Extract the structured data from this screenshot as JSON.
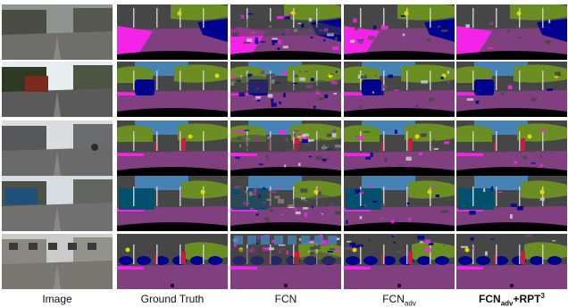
{
  "figure": {
    "captions": [
      {
        "id": "image",
        "text": "Image"
      },
      {
        "id": "gt",
        "text": "Ground Truth"
      },
      {
        "id": "fcn",
        "text": "FCN"
      },
      {
        "id": "fcn-adv",
        "base": "FCN",
        "sub": "adv"
      },
      {
        "id": "fcn-adv-rpt",
        "base": "FCN",
        "sub": "adv",
        "mid": "+RPT",
        "sup": "3"
      }
    ],
    "palette": {
      "road": "#804080",
      "sidewalk": "#f423e8",
      "building": "#464646",
      "vegetation": "#6b8e23",
      "sky": "#4682b4",
      "car": "#00008e",
      "person": "#dc143c",
      "pole": "#c8c8c8",
      "sign": "#dcdc00",
      "egovehicle": "#000000",
      "terrain": "#98fb98"
    },
    "rows": [
      {
        "id": "row-1",
        "photo_sky": "#8e9590",
        "photo_ground": "#6f6e69",
        "photo_building": "#4a4d44"
      },
      {
        "id": "row-2",
        "photo_sky": "#e6eef2",
        "photo_ground": "#5a5a5a",
        "photo_building": "#2f3a22"
      },
      {
        "id": "row-3",
        "photo_sky": "#d9dde0",
        "photo_ground": "#6a6a6a",
        "photo_building": "#55595c"
      },
      {
        "id": "row-4",
        "photo_sky": "#d5dde3",
        "photo_ground": "#707070",
        "photo_building": "#4c5148"
      },
      {
        "id": "row-5",
        "photo_sky": "#c9ccc8",
        "photo_ground": "#7a7670",
        "photo_building": "#8a8780"
      }
    ]
  }
}
